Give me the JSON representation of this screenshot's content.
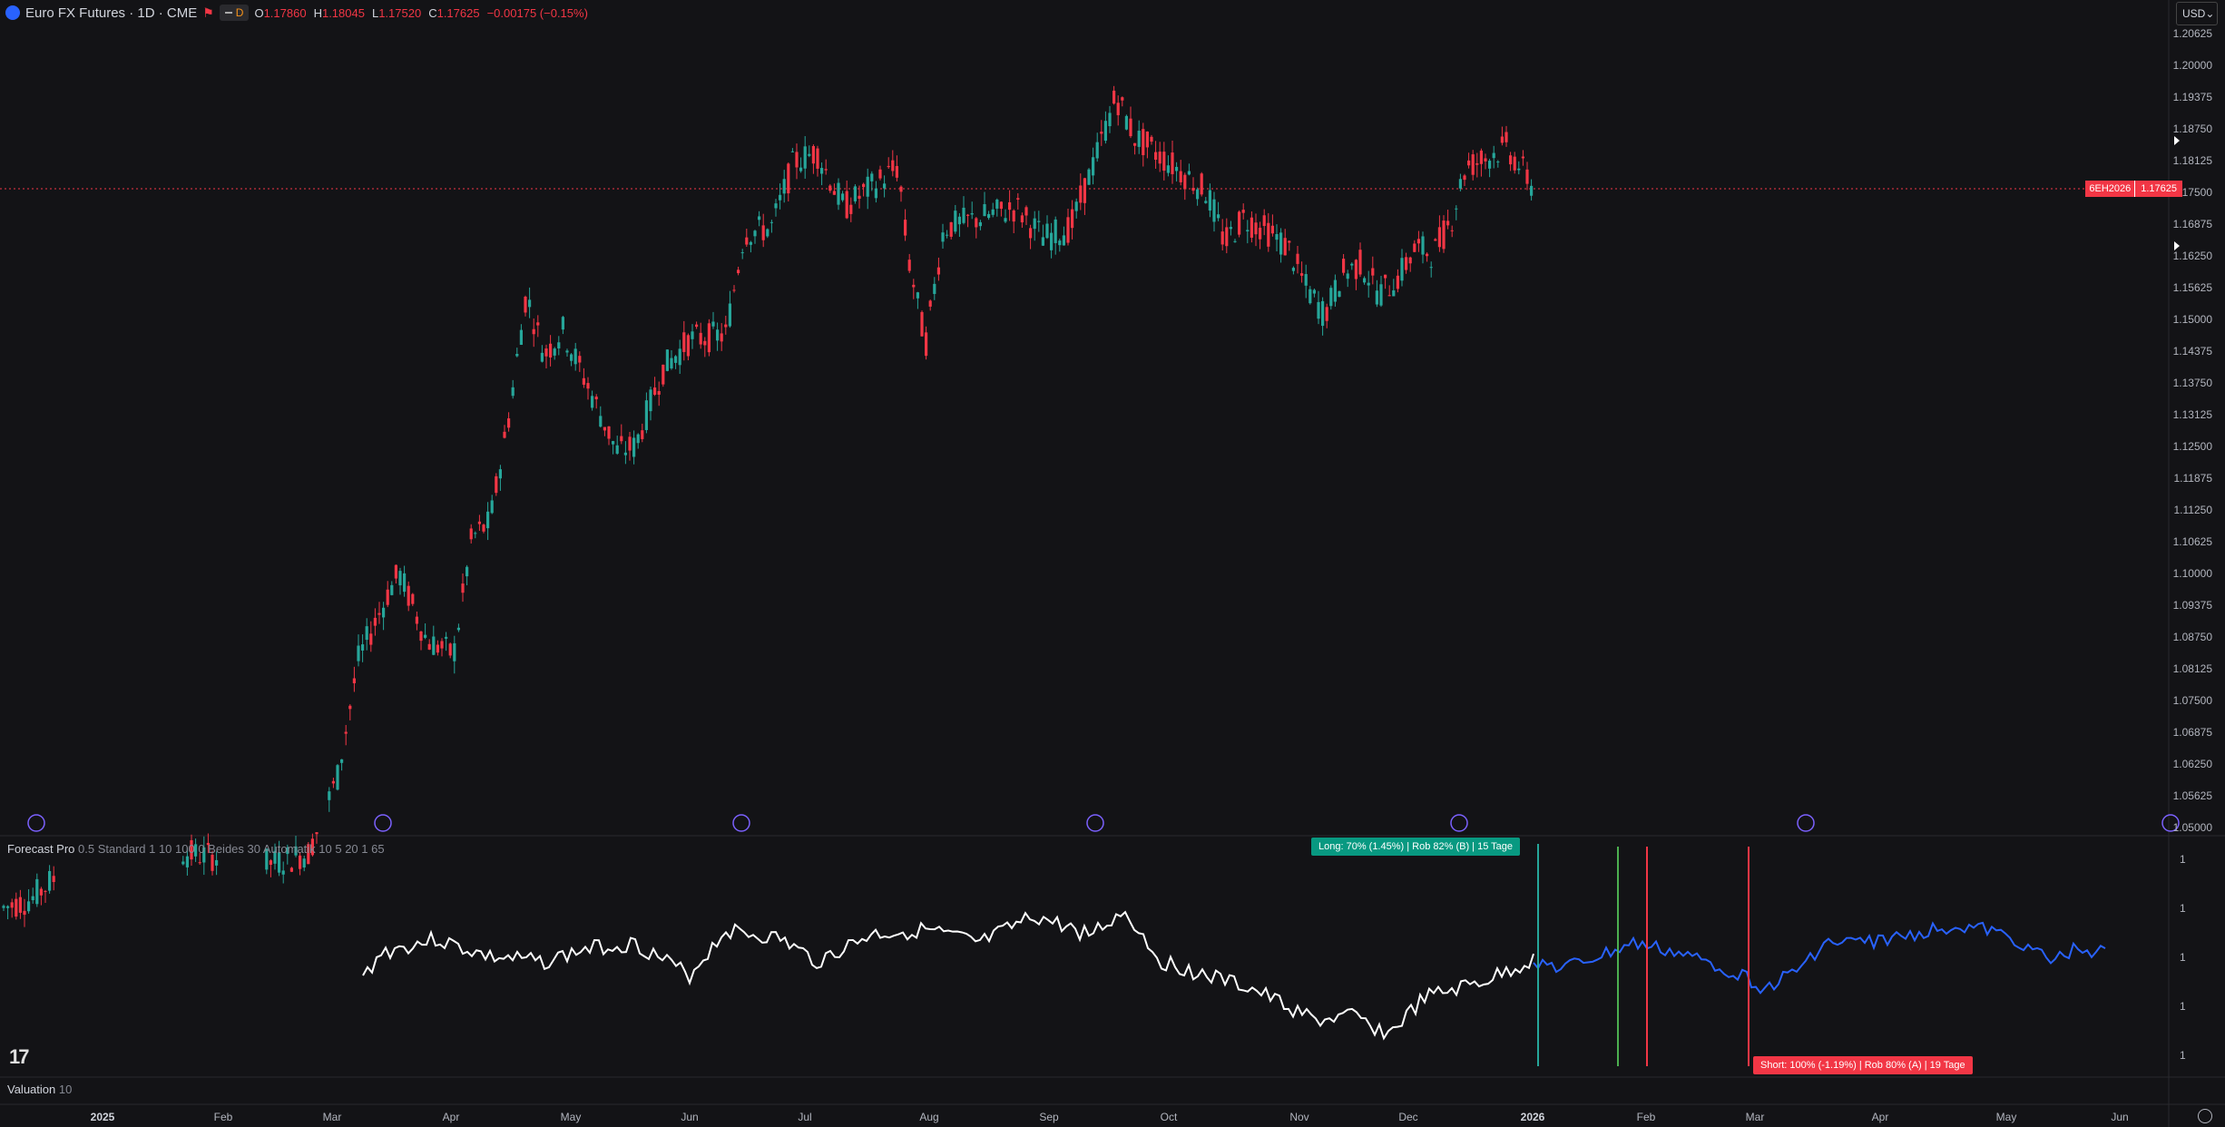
{
  "header": {
    "title": "Euro FX Futures · 1D · CME",
    "badge": "D",
    "ohlc": [
      {
        "label": "O",
        "value": "1.17860"
      },
      {
        "label": "H",
        "value": "1.18045"
      },
      {
        "label": "L",
        "value": "1.17520"
      },
      {
        "label": "C",
        "value": "1.17625"
      },
      {
        "label": "",
        "value": "−0.00175 (−0.15%)"
      }
    ]
  },
  "currency": "USD",
  "price_axis": [
    "1.20625",
    "1.20000",
    "1.19375",
    "1.18750",
    "1.18125",
    "1.17500",
    "1.16875",
    "1.16250",
    "1.15625",
    "1.15000",
    "1.14375",
    "1.13750",
    "1.13125",
    "1.12500",
    "1.11875",
    "1.11250",
    "1.10625",
    "1.10000",
    "1.09375",
    "1.08750",
    "1.08125",
    "1.07500",
    "1.06875",
    "1.06250",
    "1.05625",
    "1.05000"
  ],
  "last_price_tag": {
    "symbol": "6EH2026",
    "value": "1.17625"
  },
  "indicator": {
    "name": "Forecast Pro",
    "params": "0.5 Standard 1 10 100 0 Beides 30 Automatik 10 5 20 1 65",
    "axis_labels": [
      "1",
      "1",
      "1",
      "1",
      "1"
    ],
    "long_signal": "Long: 70% (1.45%) | Rob 82% (B) | 15 Tage",
    "short_signal": "Short: 100% (-1.19%) | Rob 80% (A) | 19 Tage"
  },
  "valuation": {
    "name": "Valuation",
    "param": "10"
  },
  "time_axis": [
    {
      "label": "2025",
      "bold": true
    },
    {
      "label": "Feb",
      "bold": false
    },
    {
      "label": "Mar",
      "bold": false
    },
    {
      "label": "Apr",
      "bold": false
    },
    {
      "label": "May",
      "bold": false
    },
    {
      "label": "Jun",
      "bold": false
    },
    {
      "label": "Jul",
      "bold": false
    },
    {
      "label": "Aug",
      "bold": false
    },
    {
      "label": "Sep",
      "bold": false
    },
    {
      "label": "Oct",
      "bold": false
    },
    {
      "label": "Nov",
      "bold": false
    },
    {
      "label": "Dec",
      "bold": false
    },
    {
      "label": "2026",
      "bold": true
    },
    {
      "label": "Feb",
      "bold": false
    },
    {
      "label": "Mar",
      "bold": false
    },
    {
      "label": "Apr",
      "bold": false
    },
    {
      "label": "May",
      "bold": false
    },
    {
      "label": "Jun",
      "bold": false
    }
  ],
  "colors": {
    "up": "#26a69a",
    "down": "#f23645",
    "forecast": "#2962ff",
    "line": "#ffffff"
  },
  "icons": [
    "tradingview-logo-icon",
    "settings-icon",
    "event-arrow-icon"
  ]
}
